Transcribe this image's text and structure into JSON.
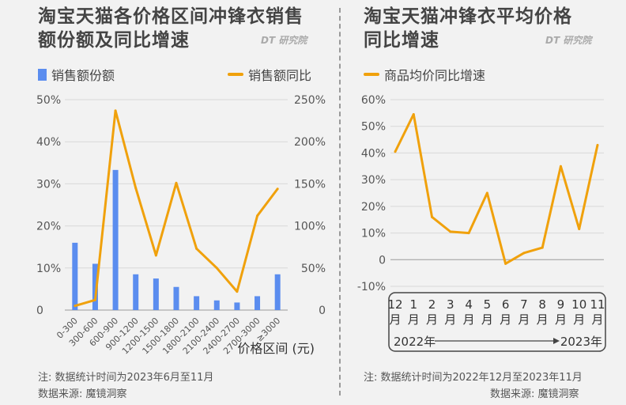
{
  "left": {
    "title": "淘宝天猫各价格区间冲锋衣销售\n额份额及同比增速",
    "brand": "DT 研究院",
    "legend_bar": "销售额份额",
    "legend_line": "销售额同比",
    "note": "注: 数据统计时间为2023年6月至11月",
    "source": "数据来源: 魔镜洞察"
  },
  "right": {
    "title": "淘宝天猫冲锋衣平均价格\n同比增速",
    "brand": "DT 研究院",
    "legend_line": "商品均价同比增速",
    "note": "注: 数据统计时间为2022年12月至2023年11月",
    "source": "数据来源: 魔镜洞察",
    "range_start": "2022年",
    "range_end": "2023年"
  },
  "colors": {
    "bar": "#5b8def",
    "line": "#f0a10c"
  },
  "chart_data": [
    {
      "type": "bar",
      "title": "淘宝天猫各价格区间冲锋衣销售额份额及同比增速",
      "xlabel": "价格区间 (元)",
      "categories": [
        "0-300",
        "300-600",
        "600-900",
        "900-1200",
        "1200-1500",
        "1500-1800",
        "1800-2100",
        "2100-2400",
        "2400-2700",
        "2700-3000",
        "≥3000"
      ],
      "series": [
        {
          "name": "销售额份额",
          "axis": "left",
          "type": "bar",
          "values": [
            16,
            11,
            33.3,
            8.5,
            7.5,
            5.5,
            3.3,
            2.3,
            1.8,
            3.3,
            8.5
          ]
        },
        {
          "name": "销售额同比",
          "axis": "right",
          "type": "line",
          "values": [
            5,
            12,
            237,
            145,
            65,
            151,
            73,
            50,
            22,
            112,
            144
          ]
        }
      ],
      "y_left": {
        "lim": [
          0,
          50
        ],
        "ticks": [
          0,
          10,
          20,
          30,
          40,
          50
        ],
        "tick_labels": [
          "0",
          "10%",
          "20%",
          "30%",
          "40%",
          "50%"
        ]
      },
      "y_right": {
        "lim": [
          0,
          250
        ],
        "ticks": [
          0,
          50,
          100,
          150,
          200,
          250
        ],
        "tick_labels": [
          "0",
          "50%",
          "100%",
          "150%",
          "200%",
          "250%"
        ]
      },
      "grid": true
    },
    {
      "type": "line",
      "title": "淘宝天猫冲锋衣平均价格同比增速",
      "categories": [
        "12月",
        "1月",
        "2月",
        "3月",
        "4月",
        "5月",
        "6月",
        "7月",
        "8月",
        "9月",
        "10月",
        "11月"
      ],
      "series": [
        {
          "name": "商品均价同比增速",
          "values": [
            40.5,
            54.5,
            16,
            10.5,
            10,
            25,
            -1.5,
            2.5,
            4.5,
            35,
            11.5,
            43
          ]
        }
      ],
      "ylim": [
        -10,
        60
      ],
      "yticks": [
        -10,
        0,
        10,
        20,
        30,
        40,
        50,
        60
      ],
      "ytick_labels": [
        "-10%",
        "0",
        "10%",
        "20%",
        "30%",
        "40%",
        "50%",
        "60%"
      ],
      "grid": true
    }
  ]
}
